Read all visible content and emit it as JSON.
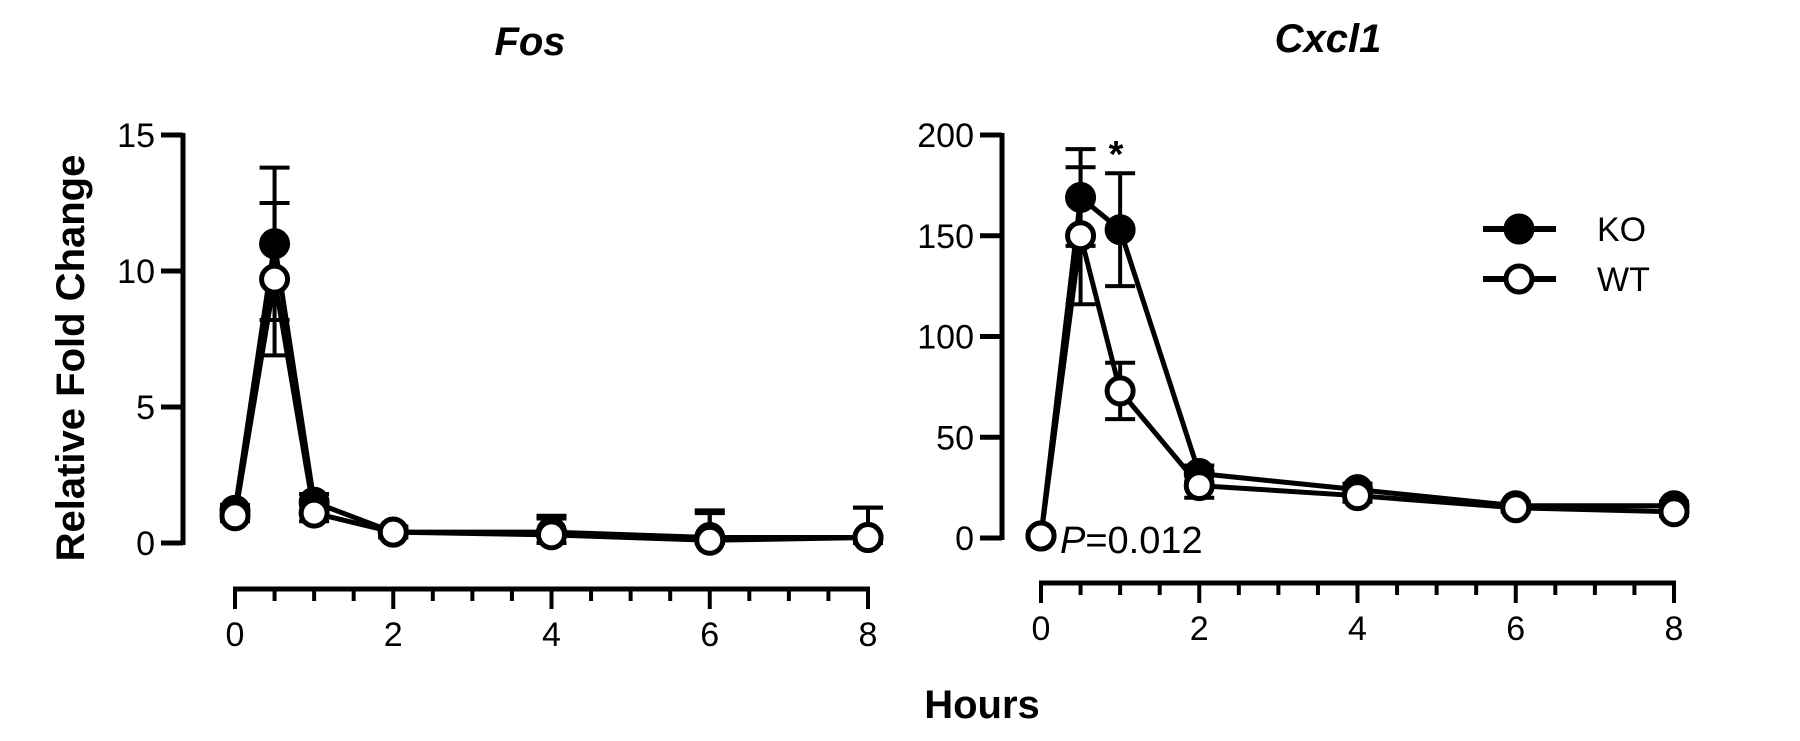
{
  "figure": {
    "ylabel": "Relative Fold Change",
    "xlabel": "Hours"
  },
  "legend": [
    {
      "name": "KO",
      "fill": "#000000"
    },
    {
      "name": "WT",
      "fill": "#ffffff"
    }
  ],
  "chart_data": [
    {
      "type": "line",
      "title": "Fos",
      "xlabel": "Hours",
      "ylabel": "Relative Fold Change",
      "xlim": [
        0,
        8
      ],
      "ylim": [
        0,
        15
      ],
      "xticks": [
        0,
        2,
        4,
        6,
        8
      ],
      "yticks": [
        0,
        5,
        10,
        15
      ],
      "x": [
        0,
        0.5,
        1,
        2,
        4,
        6,
        8
      ],
      "series": [
        {
          "name": "KO",
          "values": [
            1.2,
            11.0,
            1.5,
            0.4,
            0.4,
            0.2,
            0.2
          ],
          "errors": [
            0.2,
            2.8,
            0.3,
            0.2,
            0.6,
            1.0,
            1.1
          ]
        },
        {
          "name": "WT",
          "values": [
            1.0,
            9.7,
            1.1,
            0.4,
            0.3,
            0.1,
            0.2
          ],
          "errors": [
            0.2,
            2.8,
            0.3,
            0.2,
            0.6,
            1.0,
            1.1
          ]
        }
      ],
      "annotations": []
    },
    {
      "type": "line",
      "title": "Cxcl1",
      "xlabel": "Hours",
      "ylabel": "",
      "xlim": [
        0,
        8
      ],
      "ylim": [
        0,
        200
      ],
      "xticks": [
        0,
        2,
        4,
        6,
        8
      ],
      "yticks": [
        0,
        50,
        100,
        150,
        200
      ],
      "x": [
        0,
        0.5,
        1,
        2,
        4,
        6,
        8
      ],
      "series": [
        {
          "name": "KO",
          "values": [
            1,
            169,
            153,
            32,
            24,
            16,
            16
          ],
          "errors": [
            2,
            24,
            28,
            4,
            3,
            2,
            2
          ]
        },
        {
          "name": "WT",
          "values": [
            1,
            150,
            73,
            26,
            21,
            15,
            13
          ],
          "errors": [
            2,
            34,
            14,
            6,
            3,
            2,
            2
          ]
        }
      ],
      "annotations": [
        {
          "text": "*",
          "x": 1
        },
        {
          "prefix": "P",
          "text": "=0.012"
        }
      ],
      "legend_position": "top-right"
    }
  ]
}
